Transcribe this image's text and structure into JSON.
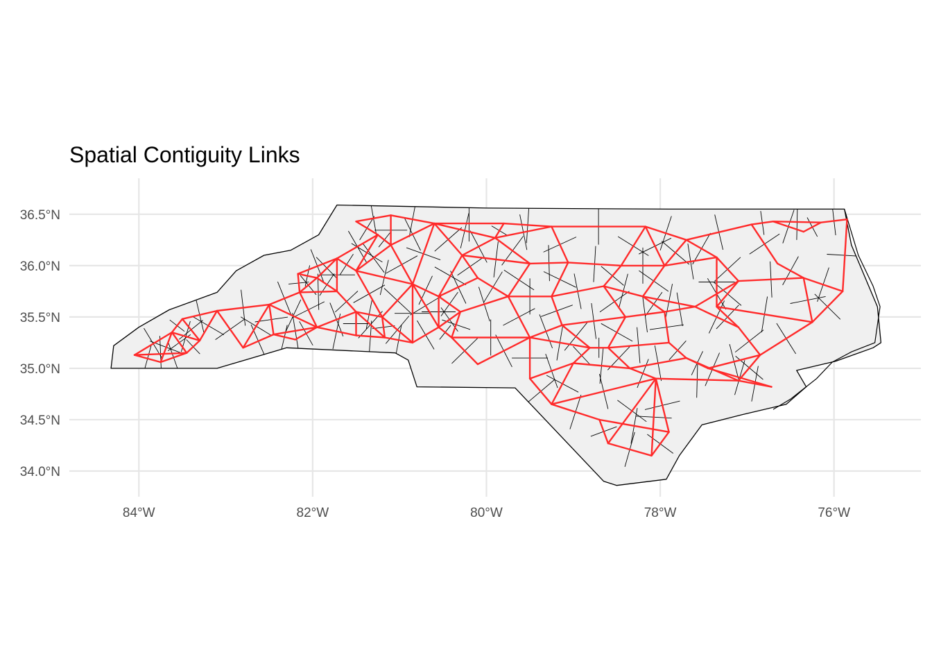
{
  "title": "Spatial Contiguity Links",
  "colors": {
    "background": "#ffffff",
    "panel_grid": "#e6e6e6",
    "land_fill": "#f0f0f0",
    "boundary": "#000000",
    "links": "#ff2a2a"
  },
  "chart_data": {
    "type": "map",
    "title": "Spatial Contiguity Links",
    "projection": "geographic",
    "xlim": [
      -84.8,
      -75.0
    ],
    "ylim": [
      33.75,
      36.85
    ],
    "x_ticks": [
      {
        "value": -84,
        "label": "84°W"
      },
      {
        "value": -82,
        "label": "82°W"
      },
      {
        "value": -80,
        "label": "80°W"
      },
      {
        "value": -78,
        "label": "78°W"
      },
      {
        "value": -76,
        "label": "76°W"
      }
    ],
    "y_ticks": [
      {
        "value": 36.5,
        "label": "36.5°N"
      },
      {
        "value": 36.0,
        "label": "36.0°N"
      },
      {
        "value": 35.5,
        "label": "35.5°N"
      },
      {
        "value": 35.0,
        "label": "35.0°N"
      },
      {
        "value": 34.5,
        "label": "34.5°N"
      },
      {
        "value": 34.0,
        "label": "34.0°N"
      }
    ],
    "grid": true,
    "layers": [
      "county polygons",
      "contiguity links"
    ],
    "state_outline": [
      [
        -84.32,
        35.0
      ],
      [
        -84.29,
        35.22
      ],
      [
        -84.0,
        35.4
      ],
      [
        -83.65,
        35.57
      ],
      [
        -83.1,
        35.74
      ],
      [
        -82.88,
        35.95
      ],
      [
        -82.56,
        36.1
      ],
      [
        -82.25,
        36.15
      ],
      [
        -81.93,
        36.3
      ],
      [
        -81.72,
        36.59
      ],
      [
        -80.0,
        36.56
      ],
      [
        -77.9,
        36.55
      ],
      [
        -75.88,
        36.55
      ],
      [
        -75.8,
        36.2
      ],
      [
        -75.5,
        35.6
      ],
      [
        -75.46,
        35.25
      ],
      [
        -75.55,
        35.2
      ],
      [
        -75.98,
        35.07
      ],
      [
        -76.43,
        34.98
      ],
      [
        -76.32,
        34.82
      ],
      [
        -76.55,
        34.65
      ],
      [
        -77.05,
        34.55
      ],
      [
        -77.52,
        34.45
      ],
      [
        -77.78,
        34.15
      ],
      [
        -77.93,
        33.92
      ],
      [
        -78.5,
        33.86
      ],
      [
        -78.65,
        33.9
      ],
      [
        -79.67,
        34.81
      ],
      [
        -80.8,
        34.82
      ],
      [
        -80.9,
        35.08
      ],
      [
        -81.05,
        35.15
      ],
      [
        -82.3,
        35.2
      ],
      [
        -83.1,
        35.0
      ],
      [
        -84.32,
        35.0
      ]
    ],
    "outer_banks": [
      [
        -75.88,
        36.55
      ],
      [
        -75.72,
        36.1
      ],
      [
        -75.55,
        35.8
      ],
      [
        -75.47,
        35.6
      ],
      [
        -75.53,
        35.25
      ],
      [
        -75.8,
        35.16
      ],
      [
        -76.02,
        35.06
      ],
      [
        -76.2,
        34.9
      ],
      [
        -76.5,
        34.7
      ],
      [
        -76.7,
        34.6
      ]
    ],
    "county_centroids": [
      [
        -84.05,
        35.13
      ],
      [
        -83.75,
        35.06
      ],
      [
        -83.45,
        35.15
      ],
      [
        -83.62,
        35.35
      ],
      [
        -83.3,
        35.27
      ],
      [
        -83.5,
        35.48
      ],
      [
        -83.1,
        35.56
      ],
      [
        -82.8,
        35.2
      ],
      [
        -82.5,
        35.62
      ],
      [
        -82.45,
        35.33
      ],
      [
        -82.2,
        35.28
      ],
      [
        -81.95,
        35.4
      ],
      [
        -82.15,
        35.74
      ],
      [
        -81.72,
        35.75
      ],
      [
        -81.95,
        35.88
      ],
      [
        -81.72,
        36.07
      ],
      [
        -82.17,
        35.92
      ],
      [
        -81.5,
        35.55
      ],
      [
        -81.5,
        35.32
      ],
      [
        -81.17,
        35.3
      ],
      [
        -81.2,
        35.5
      ],
      [
        -81.5,
        35.95
      ],
      [
        -81.25,
        36.3
      ],
      [
        -81.1,
        36.2
      ],
      [
        -81.5,
        36.43
      ],
      [
        -81.1,
        36.49
      ],
      [
        -80.85,
        35.82
      ],
      [
        -80.85,
        35.25
      ],
      [
        -80.55,
        35.4
      ],
      [
        -80.55,
        35.7
      ],
      [
        -80.6,
        36.41
      ],
      [
        -80.28,
        36.1
      ],
      [
        -80.1,
        35.88
      ],
      [
        -80.3,
        35.55
      ],
      [
        -80.4,
        35.3
      ],
      [
        -80.1,
        35.04
      ],
      [
        -79.9,
        36.27
      ],
      [
        -79.8,
        36.41
      ],
      [
        -79.5,
        36.02
      ],
      [
        -79.75,
        35.7
      ],
      [
        -79.5,
        35.3
      ],
      [
        -79.25,
        36.38
      ],
      [
        -79.06,
        36.03
      ],
      [
        -79.25,
        35.7
      ],
      [
        -79.13,
        35.42
      ],
      [
        -78.81,
        35.2
      ],
      [
        -79.0,
        35.05
      ],
      [
        -79.5,
        34.9
      ],
      [
        -79.25,
        34.65
      ],
      [
        -78.7,
        34.5
      ],
      [
        -78.6,
        34.27
      ],
      [
        -78.1,
        34.15
      ],
      [
        -77.9,
        34.38
      ],
      [
        -78.05,
        34.9
      ],
      [
        -78.35,
        35.0
      ],
      [
        -78.6,
        35.2
      ],
      [
        -78.4,
        35.5
      ],
      [
        -78.65,
        35.8
      ],
      [
        -78.45,
        36.0
      ],
      [
        -78.17,
        36.38
      ],
      [
        -77.95,
        36.0
      ],
      [
        -78.2,
        35.7
      ],
      [
        -77.95,
        35.55
      ],
      [
        -77.6,
        35.6
      ],
      [
        -77.9,
        35.25
      ],
      [
        -77.7,
        35.1
      ],
      [
        -77.1,
        34.88
      ],
      [
        -76.72,
        34.82
      ],
      [
        -77.45,
        35.0
      ],
      [
        -77.7,
        36.25
      ],
      [
        -77.35,
        36.08
      ],
      [
        -77.1,
        35.85
      ],
      [
        -77.35,
        35.6
      ],
      [
        -77.1,
        35.4
      ],
      [
        -76.85,
        35.13
      ],
      [
        -76.25,
        35.45
      ],
      [
        -76.35,
        35.88
      ],
      [
        -76.65,
        36.02
      ],
      [
        -76.95,
        36.4
      ],
      [
        -76.7,
        36.43
      ],
      [
        -76.35,
        36.33
      ],
      [
        -76.15,
        36.42
      ],
      [
        -75.85,
        36.45
      ],
      [
        -75.9,
        35.75
      ]
    ],
    "contiguity_links": [
      [
        0,
        1
      ],
      [
        0,
        2
      ],
      [
        0,
        3
      ],
      [
        1,
        2
      ],
      [
        1,
        3
      ],
      [
        2,
        3
      ],
      [
        2,
        4
      ],
      [
        3,
        4
      ],
      [
        3,
        5
      ],
      [
        4,
        5
      ],
      [
        4,
        6
      ],
      [
        5,
        6
      ],
      [
        6,
        7
      ],
      [
        6,
        8
      ],
      [
        7,
        8
      ],
      [
        7,
        9
      ],
      [
        8,
        9
      ],
      [
        8,
        12
      ],
      [
        9,
        10
      ],
      [
        9,
        11
      ],
      [
        10,
        11
      ],
      [
        8,
        11
      ],
      [
        11,
        12
      ],
      [
        12,
        13
      ],
      [
        12,
        14
      ],
      [
        12,
        16
      ],
      [
        13,
        14
      ],
      [
        14,
        16
      ],
      [
        14,
        15
      ],
      [
        15,
        16
      ],
      [
        13,
        15
      ],
      [
        13,
        17
      ],
      [
        11,
        17
      ],
      [
        11,
        18
      ],
      [
        17,
        18
      ],
      [
        18,
        19
      ],
      [
        17,
        19
      ],
      [
        17,
        20
      ],
      [
        19,
        20
      ],
      [
        20,
        21
      ],
      [
        15,
        21
      ],
      [
        21,
        22
      ],
      [
        15,
        22
      ],
      [
        22,
        23
      ],
      [
        22,
        24
      ],
      [
        24,
        25
      ],
      [
        23,
        25
      ],
      [
        21,
        23
      ],
      [
        20,
        26
      ],
      [
        21,
        26
      ],
      [
        23,
        26
      ],
      [
        26,
        27
      ],
      [
        20,
        27
      ],
      [
        19,
        27
      ],
      [
        27,
        28
      ],
      [
        26,
        28
      ],
      [
        26,
        29
      ],
      [
        28,
        29
      ],
      [
        23,
        30
      ],
      [
        25,
        30
      ],
      [
        26,
        30
      ],
      [
        30,
        31
      ],
      [
        29,
        31
      ],
      [
        31,
        32
      ],
      [
        29,
        32
      ],
      [
        29,
        33
      ],
      [
        28,
        33
      ],
      [
        33,
        34
      ],
      [
        28,
        34
      ],
      [
        34,
        35
      ],
      [
        30,
        36
      ],
      [
        31,
        36
      ],
      [
        36,
        37
      ],
      [
        30,
        37
      ],
      [
        36,
        38
      ],
      [
        31,
        38
      ],
      [
        38,
        39
      ],
      [
        32,
        39
      ],
      [
        33,
        39
      ],
      [
        39,
        40
      ],
      [
        34,
        40
      ],
      [
        35,
        40
      ],
      [
        37,
        41
      ],
      [
        36,
        41
      ],
      [
        41,
        42
      ],
      [
        38,
        42
      ],
      [
        42,
        43
      ],
      [
        39,
        43
      ],
      [
        43,
        44
      ],
      [
        40,
        44
      ],
      [
        44,
        45
      ],
      [
        40,
        45
      ],
      [
        45,
        46
      ],
      [
        40,
        47
      ],
      [
        46,
        47
      ],
      [
        47,
        48
      ],
      [
        46,
        48
      ],
      [
        48,
        49
      ],
      [
        49,
        50
      ],
      [
        50,
        51
      ],
      [
        51,
        52
      ],
      [
        49,
        52
      ],
      [
        48,
        53
      ],
      [
        52,
        53
      ],
      [
        53,
        54
      ],
      [
        46,
        54
      ],
      [
        54,
        55
      ],
      [
        45,
        55
      ],
      [
        55,
        56
      ],
      [
        44,
        56
      ],
      [
        56,
        57
      ],
      [
        43,
        57
      ],
      [
        57,
        58
      ],
      [
        42,
        58
      ],
      [
        58,
        59
      ],
      [
        41,
        59
      ],
      [
        59,
        60
      ],
      [
        58,
        60
      ],
      [
        60,
        61
      ],
      [
        57,
        61
      ],
      [
        61,
        62
      ],
      [
        56,
        62
      ],
      [
        62,
        63
      ],
      [
        61,
        63
      ],
      [
        62,
        64
      ],
      [
        55,
        64
      ],
      [
        64,
        65
      ],
      [
        54,
        65
      ],
      [
        65,
        66
      ],
      [
        66,
        67
      ],
      [
        65,
        68
      ],
      [
        67,
        68
      ],
      [
        59,
        69
      ],
      [
        60,
        69
      ],
      [
        69,
        70
      ],
      [
        60,
        70
      ],
      [
        70,
        71
      ],
      [
        63,
        71
      ],
      [
        70,
        72
      ],
      [
        71,
        72
      ],
      [
        72,
        73
      ],
      [
        63,
        73
      ],
      [
        73,
        74
      ],
      [
        68,
        74
      ],
      [
        66,
        74
      ],
      [
        74,
        75
      ],
      [
        72,
        75
      ],
      [
        75,
        76
      ],
      [
        71,
        76
      ],
      [
        76,
        77
      ],
      [
        69,
        78
      ],
      [
        77,
        78
      ],
      [
        78,
        79
      ],
      [
        79,
        80
      ],
      [
        80,
        81
      ],
      [
        79,
        81
      ],
      [
        81,
        82
      ],
      [
        82,
        83
      ],
      [
        83,
        75
      ],
      [
        76,
        83
      ],
      [
        53,
        66
      ],
      [
        50,
        53
      ],
      [
        51,
        53
      ]
    ]
  }
}
